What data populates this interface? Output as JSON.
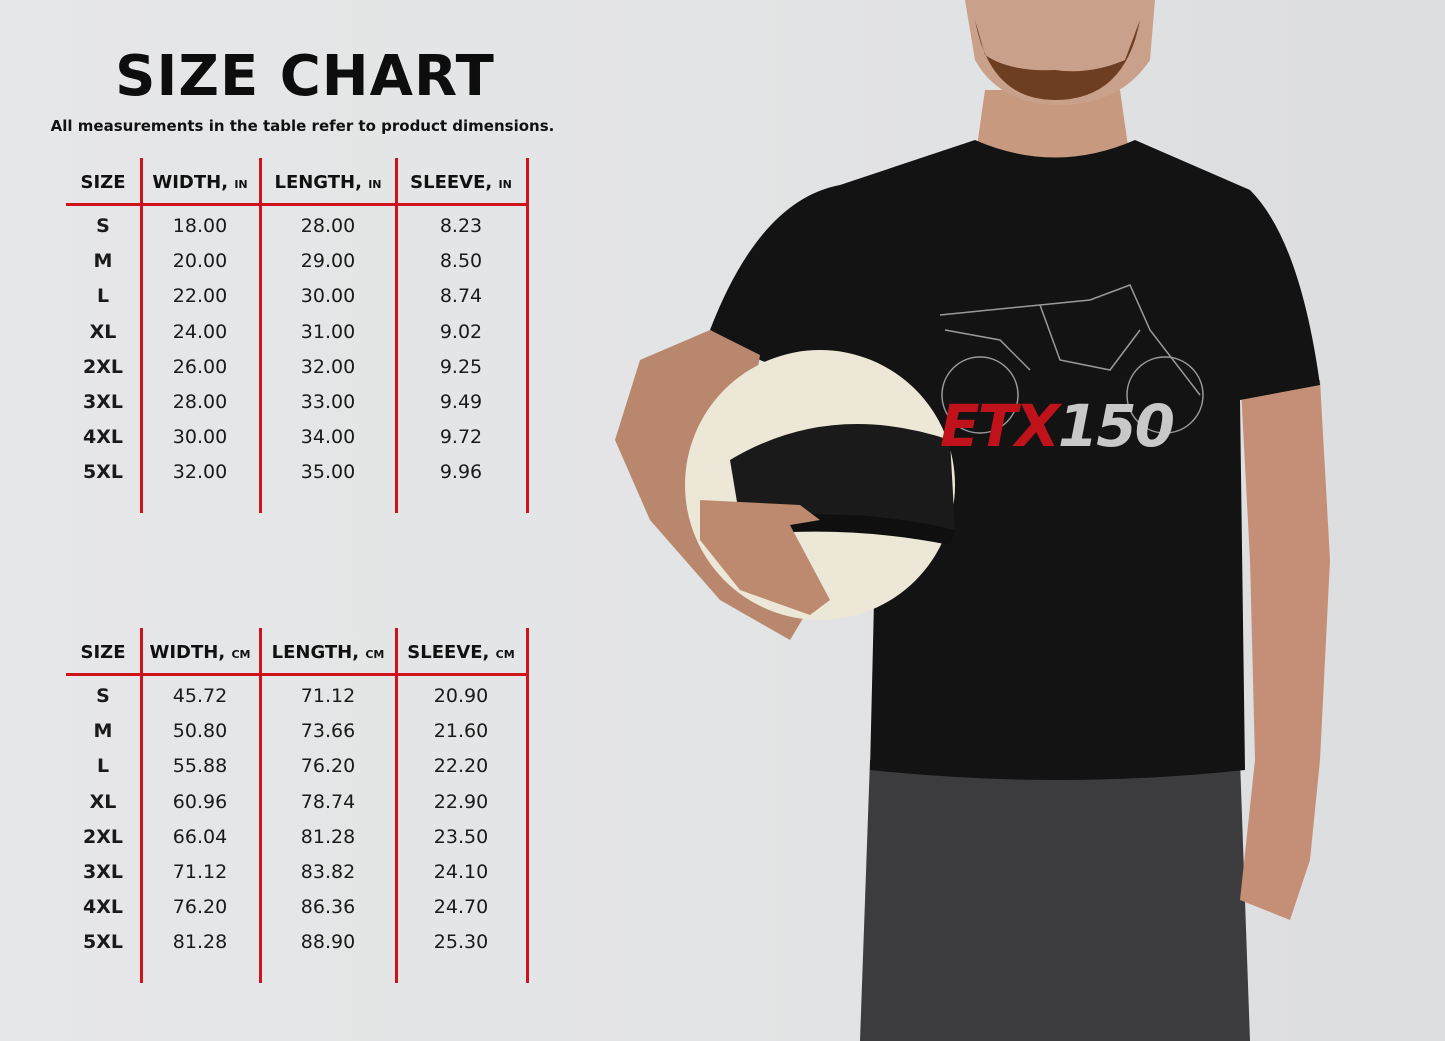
{
  "title": "SIZE CHART",
  "subtitle": "All measurements in the table refer to product dimensions.",
  "colors": {
    "accent_lines": "#d0121b",
    "shirt": "#111111",
    "logo_red": "#c0121b",
    "logo_gray": "#c8c8c8"
  },
  "tables": [
    {
      "headers": [
        {
          "label": "SIZE",
          "unit": ""
        },
        {
          "label": "WIDTH, ",
          "unit": "IN"
        },
        {
          "label": "LENGTH, ",
          "unit": "IN"
        },
        {
          "label": "SLEEVE, ",
          "unit": "IN"
        }
      ],
      "rows": [
        [
          "S",
          "18.00",
          "28.00",
          "8.23"
        ],
        [
          "M",
          "20.00",
          "29.00",
          "8.50"
        ],
        [
          "L",
          "22.00",
          "30.00",
          "8.74"
        ],
        [
          "XL",
          "24.00",
          "31.00",
          "9.02"
        ],
        [
          "2XL",
          "26.00",
          "32.00",
          "9.25"
        ],
        [
          "3XL",
          "28.00",
          "33.00",
          "9.49"
        ],
        [
          "4XL",
          "30.00",
          "34.00",
          "9.72"
        ],
        [
          "5XL",
          "32.00",
          "35.00",
          "9.96"
        ]
      ]
    },
    {
      "headers": [
        {
          "label": "SIZE",
          "unit": ""
        },
        {
          "label": "WIDTH, ",
          "unit": "CM"
        },
        {
          "label": "LENGTH, ",
          "unit": "CM"
        },
        {
          "label": "SLEEVE, ",
          "unit": "CM"
        }
      ],
      "rows": [
        [
          "S",
          "45.72",
          "71.12",
          "20.90"
        ],
        [
          "M",
          "50.80",
          "73.66",
          "21.60"
        ],
        [
          "L",
          "55.88",
          "76.20",
          "22.20"
        ],
        [
          "XL",
          "60.96",
          "78.74",
          "22.90"
        ],
        [
          "2XL",
          "66.04",
          "81.28",
          "23.50"
        ],
        [
          "3XL",
          "71.12",
          "83.82",
          "24.10"
        ],
        [
          "4XL",
          "76.20",
          "86.36",
          "24.70"
        ],
        [
          "5XL",
          "81.28",
          "88.90",
          "25.30"
        ]
      ]
    }
  ],
  "product": {
    "logo_red": "ETX",
    "logo_gray": "150"
  }
}
